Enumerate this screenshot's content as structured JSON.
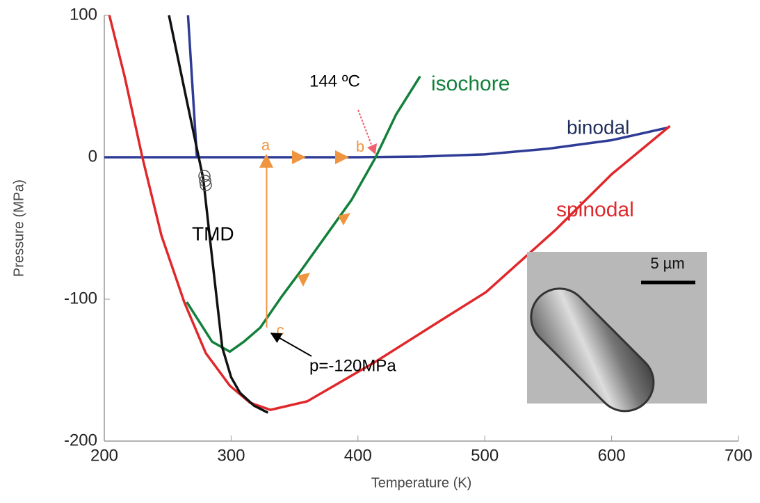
{
  "chart_data": {
    "type": "line",
    "xlabel": "Temperature (K)",
    "ylabel": "Pressure (MPa)",
    "xlim": [
      200,
      700
    ],
    "xticks": [
      200,
      300,
      400,
      500,
      600,
      700
    ],
    "ylim": [
      -200,
      100
    ],
    "yticks": [
      -200,
      -100,
      0,
      100
    ],
    "series": [
      {
        "name": "binodal",
        "color": "#2f3c96",
        "label_color": "#1f2d5a",
        "x": [
          200,
          300,
          400,
          450,
          500,
          550,
          600,
          645
        ],
        "values": [
          0,
          0,
          0,
          0.5,
          2,
          6,
          12,
          21
        ]
      },
      {
        "color": "#2f3c96",
        "x": [
          266,
          273
        ],
        "values": [
          100,
          0
        ]
      },
      {
        "name": "spinodal",
        "color": "#e0282b",
        "x": [
          204,
          216,
          230,
          245,
          263,
          280,
          299,
          315,
          331,
          360,
          414,
          460,
          501,
          556,
          600,
          646
        ],
        "values": [
          100,
          57,
          0,
          -55,
          -102,
          -138,
          -161,
          -173,
          -178,
          -172,
          -144,
          -118,
          -95,
          -51,
          -12,
          22
        ]
      },
      {
        "name": "isochore",
        "color": "#12803a",
        "x": [
          449,
          430,
          414,
          395,
          375,
          355,
          340,
          323,
          310,
          299,
          285,
          265
        ],
        "values": [
          57,
          30,
          0,
          -30,
          -55,
          -80,
          -98,
          -120,
          -130,
          -137,
          -130,
          -102
        ]
      },
      {
        "name": "TMD",
        "color": "#111111",
        "label_color": "#000000",
        "x": [
          251,
          265,
          278,
          285,
          293,
          300,
          307,
          318,
          329
        ],
        "values": [
          100,
          40,
          -15,
          -71,
          -134,
          -155,
          -166,
          -175,
          -180
        ]
      },
      {
        "color": "#f0953f",
        "x": [
          328,
          328
        ],
        "values": [
          -120,
          0
        ]
      }
    ],
    "annotations": [
      "144 ºC",
      "a",
      "b",
      "c",
      "p=-120MPa"
    ],
    "inset_scale": "5 µm"
  }
}
